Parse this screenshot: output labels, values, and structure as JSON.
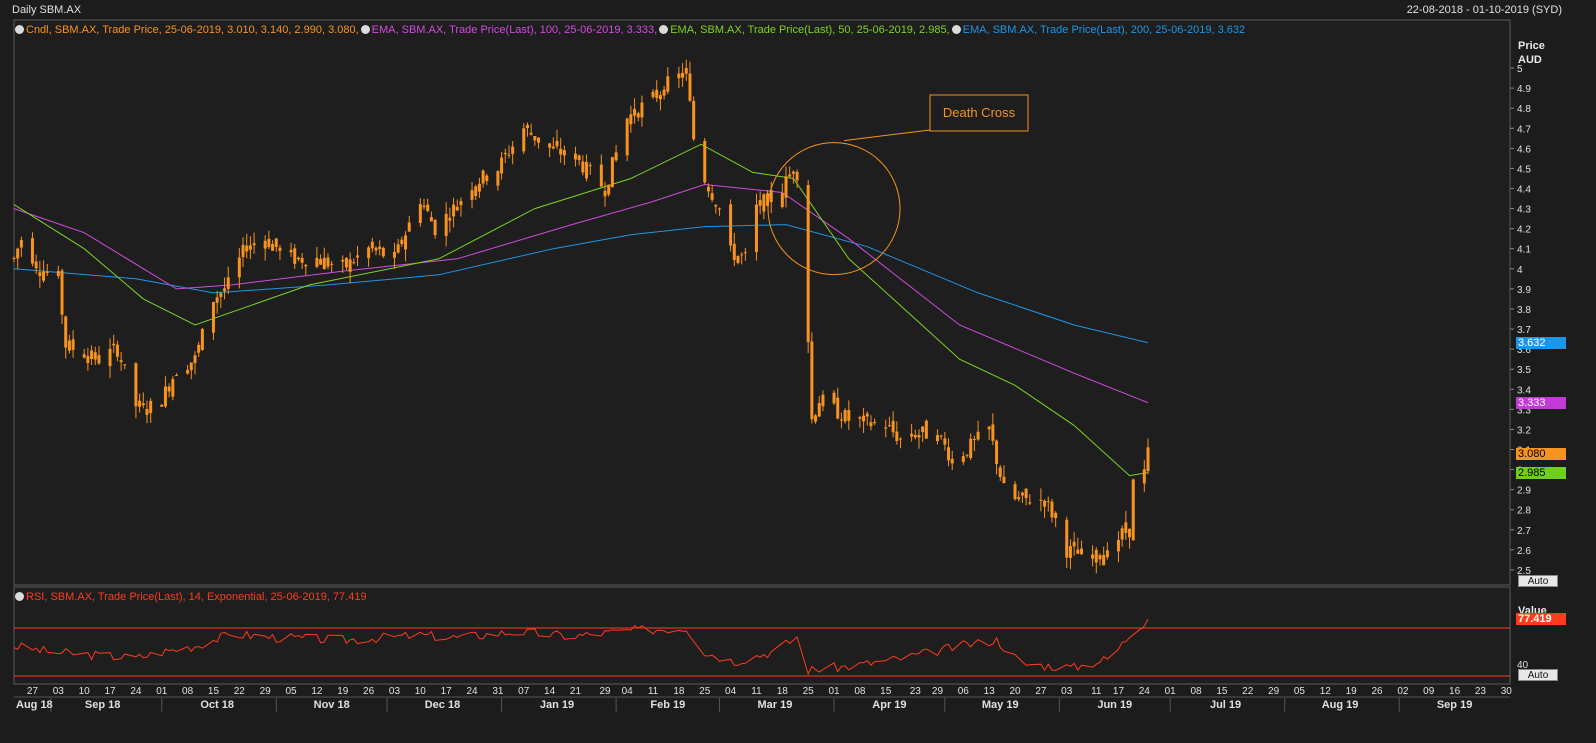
{
  "header": {
    "title": "Daily SBM.AX",
    "date_range": "22-08-2018 - 01-10-2019 (SYD)"
  },
  "legend_main": [
    {
      "label": "Cndl, SBM.AX, Trade Price, 25-06-2019, 3.010, 3.140, 2.990, 3.080,",
      "color": "#f7931e"
    },
    {
      "label": "EMA, SBM.AX, Trade Price(Last),  100, 25-06-2019, 3.333,",
      "color": "#d24be0"
    },
    {
      "label": "EMA, SBM.AX, Trade Price(Last),  50, 25-06-2019, 2.985,",
      "color": "#7ed321"
    },
    {
      "label": "EMA, SBM.AX, Trade Price(Last),  200, 25-06-2019, 3.632",
      "color": "#1e96e8"
    }
  ],
  "legend_rsi": {
    "label": "RSI, SBM.AX, Trade Price(Last),  14, Exponential, 25-06-2019, 77.419",
    "color": "#ff3b1f"
  },
  "price_axis": {
    "title": "Price",
    "unit": "AUD"
  },
  "rsi_axis": {
    "title": "Value",
    "tick": "40"
  },
  "auto_label": "Auto",
  "annotation": {
    "text": "Death Cross",
    "color": "#f7931e"
  },
  "price_tags": [
    {
      "text": "3.632",
      "bg": "#1e96e8",
      "fg": "#ffffff",
      "value": 3.632
    },
    {
      "text": "3.333",
      "bg": "#c23ad6",
      "fg": "#ffffff",
      "value": 3.333
    },
    {
      "text": "3.080",
      "bg": "#f7931e",
      "fg": "#000000",
      "value": 3.08
    },
    {
      "text": "2.985",
      "bg": "#6fcf1c",
      "fg": "#000000",
      "value": 2.985
    }
  ],
  "rsi_tag": {
    "text": "77.419",
    "bg": "#ff3b1f",
    "fg": "#ffffff",
    "value": 77.419
  },
  "chart_data": {
    "type": "line",
    "x_range": [
      "2018-08-22",
      "2019-10-01"
    ],
    "ylim": [
      2.45,
      5.05
    ],
    "y_ticks": [
      "5",
      "4.9",
      "4.8",
      "4.7",
      "4.6",
      "4.5",
      "4.4",
      "4.3",
      "4.2",
      "4.1",
      "4",
      "3.9",
      "3.8",
      "3.7",
      "3.6",
      "3.5",
      "3.4",
      "3.3",
      "3.2",
      "3.1",
      "3",
      "2.9",
      "2.8",
      "2.7",
      "2.6",
      "2.5"
    ],
    "x_day_ticks": [
      {
        "label": "27",
        "date": "2018-08-27"
      },
      {
        "label": "03",
        "date": "2018-09-03"
      },
      {
        "label": "10",
        "date": "2018-09-10"
      },
      {
        "label": "17",
        "date": "2018-09-17"
      },
      {
        "label": "24",
        "date": "2018-09-24"
      },
      {
        "label": "01",
        "date": "2018-10-01"
      },
      {
        "label": "08",
        "date": "2018-10-08"
      },
      {
        "label": "15",
        "date": "2018-10-15"
      },
      {
        "label": "22",
        "date": "2018-10-22"
      },
      {
        "label": "29",
        "date": "2018-10-29"
      },
      {
        "label": "05",
        "date": "2018-11-05"
      },
      {
        "label": "12",
        "date": "2018-11-12"
      },
      {
        "label": "19",
        "date": "2018-11-19"
      },
      {
        "label": "26",
        "date": "2018-11-26"
      },
      {
        "label": "03",
        "date": "2018-12-03"
      },
      {
        "label": "10",
        "date": "2018-12-10"
      },
      {
        "label": "17",
        "date": "2018-12-17"
      },
      {
        "label": "24",
        "date": "2018-12-24"
      },
      {
        "label": "31",
        "date": "2018-12-31"
      },
      {
        "label": "07",
        "date": "2019-01-07"
      },
      {
        "label": "14",
        "date": "2019-01-14"
      },
      {
        "label": "21",
        "date": "2019-01-21"
      },
      {
        "label": "29",
        "date": "2019-01-29"
      },
      {
        "label": "04",
        "date": "2019-02-04"
      },
      {
        "label": "11",
        "date": "2019-02-11"
      },
      {
        "label": "18",
        "date": "2019-02-18"
      },
      {
        "label": "25",
        "date": "2019-02-25"
      },
      {
        "label": "04",
        "date": "2019-03-04"
      },
      {
        "label": "11",
        "date": "2019-03-11"
      },
      {
        "label": "18",
        "date": "2019-03-18"
      },
      {
        "label": "25",
        "date": "2019-03-25"
      },
      {
        "label": "01",
        "date": "2019-04-01"
      },
      {
        "label": "08",
        "date": "2019-04-08"
      },
      {
        "label": "15",
        "date": "2019-04-15"
      },
      {
        "label": "23",
        "date": "2019-04-23"
      },
      {
        "label": "29",
        "date": "2019-04-29"
      },
      {
        "label": "06",
        "date": "2019-05-06"
      },
      {
        "label": "13",
        "date": "2019-05-13"
      },
      {
        "label": "20",
        "date": "2019-05-20"
      },
      {
        "label": "27",
        "date": "2019-05-27"
      },
      {
        "label": "03",
        "date": "2019-06-03"
      },
      {
        "label": "11",
        "date": "2019-06-11"
      },
      {
        "label": "17",
        "date": "2019-06-17"
      },
      {
        "label": "24",
        "date": "2019-06-24"
      },
      {
        "label": "01",
        "date": "2019-07-01"
      },
      {
        "label": "08",
        "date": "2019-07-08"
      },
      {
        "label": "15",
        "date": "2019-07-15"
      },
      {
        "label": "22",
        "date": "2019-07-22"
      },
      {
        "label": "29",
        "date": "2019-07-29"
      },
      {
        "label": "05",
        "date": "2019-08-05"
      },
      {
        "label": "12",
        "date": "2019-08-12"
      },
      {
        "label": "19",
        "date": "2019-08-19"
      },
      {
        "label": "26",
        "date": "2019-08-26"
      },
      {
        "label": "02",
        "date": "2019-09-02"
      },
      {
        "label": "09",
        "date": "2019-09-09"
      },
      {
        "label": "16",
        "date": "2019-09-16"
      },
      {
        "label": "23",
        "date": "2019-09-23"
      },
      {
        "label": "30",
        "date": "2019-09-30"
      }
    ],
    "x_month_ticks": [
      {
        "label": "Aug 18",
        "date": "2018-08-22"
      },
      {
        "label": "Sep 18",
        "date": "2018-09-15"
      },
      {
        "label": "Oct 18",
        "date": "2018-10-16"
      },
      {
        "label": "Nov 18",
        "date": "2018-11-16"
      },
      {
        "label": "Dec 18",
        "date": "2018-12-16"
      },
      {
        "label": "Jan 19",
        "date": "2019-01-16"
      },
      {
        "label": "Feb 19",
        "date": "2019-02-15"
      },
      {
        "label": "Mar 19",
        "date": "2019-03-16"
      },
      {
        "label": "Apr 19",
        "date": "2019-04-16"
      },
      {
        "label": "May 19",
        "date": "2019-05-16"
      },
      {
        "label": "Jun 19",
        "date": "2019-06-16"
      },
      {
        "label": "Jul 19",
        "date": "2019-07-16"
      },
      {
        "label": "Aug 19",
        "date": "2019-08-16"
      },
      {
        "label": "Sep 19",
        "date": "2019-09-16"
      }
    ],
    "month_boundaries": [
      "2018-09-01",
      "2018-10-01",
      "2018-11-01",
      "2018-12-01",
      "2019-01-01",
      "2019-02-01",
      "2019-03-01",
      "2019-04-01",
      "2019-05-01",
      "2019-06-01",
      "2019-07-01",
      "2019-08-01",
      "2019-09-01"
    ],
    "price_path": [
      [
        "2018-08-22",
        4.05
      ],
      [
        "2018-08-24",
        4.15
      ],
      [
        "2018-08-29",
        4.0
      ],
      [
        "2018-09-03",
        3.95
      ],
      [
        "2018-09-05",
        3.62
      ],
      [
        "2018-09-10",
        3.58
      ],
      [
        "2018-09-14",
        3.55
      ],
      [
        "2018-09-19",
        3.6
      ],
      [
        "2018-09-24",
        3.32
      ],
      [
        "2018-09-27",
        3.3
      ],
      [
        "2018-10-01",
        3.35
      ],
      [
        "2018-10-05",
        3.5
      ],
      [
        "2018-10-10",
        3.55
      ],
      [
        "2018-10-15",
        3.85
      ],
      [
        "2018-10-19",
        3.92
      ],
      [
        "2018-10-24",
        4.12
      ],
      [
        "2018-10-29",
        4.15
      ],
      [
        "2018-11-05",
        4.05
      ],
      [
        "2018-11-12",
        4.05
      ],
      [
        "2018-11-19",
        4.0
      ],
      [
        "2018-11-26",
        4.1
      ],
      [
        "2018-12-03",
        4.05
      ],
      [
        "2018-12-10",
        4.35
      ],
      [
        "2018-12-14",
        4.2
      ],
      [
        "2018-12-19",
        4.3
      ],
      [
        "2018-12-24",
        4.42
      ],
      [
        "2018-12-31",
        4.5
      ],
      [
        "2019-01-07",
        4.7
      ],
      [
        "2019-01-14",
        4.6
      ],
      [
        "2019-01-21",
        4.55
      ],
      [
        "2019-01-29",
        4.4
      ],
      [
        "2019-02-04",
        4.75
      ],
      [
        "2019-02-11",
        4.85
      ],
      [
        "2019-02-15",
        4.92
      ],
      [
        "2019-02-20",
        4.98
      ],
      [
        "2019-02-22",
        4.65
      ],
      [
        "2019-02-25",
        4.45
      ],
      [
        "2019-03-01",
        4.3
      ],
      [
        "2019-03-04",
        4.08
      ],
      [
        "2019-03-08",
        4.05
      ],
      [
        "2019-03-11",
        4.3
      ],
      [
        "2019-03-15",
        4.35
      ],
      [
        "2019-03-18",
        4.4
      ],
      [
        "2019-03-21",
        4.5
      ],
      [
        "2019-03-22",
        4.48
      ],
      [
        "2019-03-25",
        3.65
      ],
      [
        "2019-03-26",
        3.25
      ],
      [
        "2019-03-28",
        3.35
      ],
      [
        "2019-04-01",
        3.3
      ],
      [
        "2019-04-05",
        3.25
      ],
      [
        "2019-04-10",
        3.23
      ],
      [
        "2019-04-15",
        3.22
      ],
      [
        "2019-04-19",
        3.15
      ],
      [
        "2019-04-23",
        3.18
      ],
      [
        "2019-04-29",
        3.18
      ],
      [
        "2019-05-03",
        3.05
      ],
      [
        "2019-05-07",
        3.1
      ],
      [
        "2019-05-10",
        3.15
      ],
      [
        "2019-05-13",
        3.2
      ],
      [
        "2019-05-17",
        2.9
      ],
      [
        "2019-05-20",
        2.85
      ],
      [
        "2019-05-24",
        2.85
      ],
      [
        "2019-05-28",
        2.85
      ],
      [
        "2019-05-31",
        2.75
      ],
      [
        "2019-06-03",
        2.6
      ],
      [
        "2019-06-06",
        2.58
      ],
      [
        "2019-06-10",
        2.55
      ],
      [
        "2019-06-14",
        2.6
      ],
      [
        "2019-06-18",
        2.68
      ],
      [
        "2019-06-20",
        2.7
      ],
      [
        "2019-06-21",
        2.93
      ],
      [
        "2019-06-24",
        2.98
      ],
      [
        "2019-06-25",
        3.08
      ]
    ],
    "series": [
      {
        "name": "EMA 200",
        "color": "#1e96e8",
        "points": [
          [
            "2018-08-22",
            4.0
          ],
          [
            "2018-09-24",
            3.95
          ],
          [
            "2018-10-15",
            3.88
          ],
          [
            "2018-11-15",
            3.92
          ],
          [
            "2018-12-15",
            3.97
          ],
          [
            "2019-01-15",
            4.1
          ],
          [
            "2019-02-05",
            4.17
          ],
          [
            "2019-02-25",
            4.21
          ],
          [
            "2019-03-19",
            4.22
          ],
          [
            "2019-04-10",
            4.11
          ],
          [
            "2019-05-10",
            3.88
          ],
          [
            "2019-06-05",
            3.72
          ],
          [
            "2019-06-25",
            3.632
          ]
        ]
      },
      {
        "name": "EMA 100",
        "color": "#d24be0",
        "points": [
          [
            "2018-08-22",
            4.3
          ],
          [
            "2018-09-10",
            4.18
          ],
          [
            "2018-10-05",
            3.9
          ],
          [
            "2018-10-20",
            3.92
          ],
          [
            "2018-11-20",
            3.99
          ],
          [
            "2018-12-20",
            4.05
          ],
          [
            "2019-01-20",
            4.22
          ],
          [
            "2019-02-10",
            4.33
          ],
          [
            "2019-02-25",
            4.42
          ],
          [
            "2019-03-18",
            4.38
          ],
          [
            "2019-04-05",
            4.15
          ],
          [
            "2019-05-05",
            3.72
          ],
          [
            "2019-06-05",
            3.48
          ],
          [
            "2019-06-25",
            3.333
          ]
        ]
      },
      {
        "name": "EMA 50",
        "color": "#7ed321",
        "points": [
          [
            "2018-08-22",
            4.32
          ],
          [
            "2018-09-10",
            4.1
          ],
          [
            "2018-09-26",
            3.85
          ],
          [
            "2018-10-10",
            3.72
          ],
          [
            "2018-11-10",
            3.92
          ],
          [
            "2018-12-15",
            4.05
          ],
          [
            "2019-01-10",
            4.3
          ],
          [
            "2019-02-05",
            4.45
          ],
          [
            "2019-02-24",
            4.62
          ],
          [
            "2019-03-10",
            4.48
          ],
          [
            "2019-03-21",
            4.45
          ],
          [
            "2019-04-05",
            4.05
          ],
          [
            "2019-05-05",
            3.55
          ],
          [
            "2019-05-20",
            3.42
          ],
          [
            "2019-06-05",
            3.22
          ],
          [
            "2019-06-20",
            2.97
          ],
          [
            "2019-06-25",
            2.985
          ]
        ]
      }
    ],
    "rsi": {
      "ylim": [
        25,
        90
      ],
      "levels": [
        70,
        30
      ],
      "points": [
        [
          "2018-08-22",
          55
        ],
        [
          "2018-09-01",
          50
        ],
        [
          "2018-09-10",
          48
        ],
        [
          "2018-09-24",
          45
        ],
        [
          "2018-10-01",
          50
        ],
        [
          "2018-10-10",
          55
        ],
        [
          "2018-10-20",
          65
        ],
        [
          "2018-11-01",
          62
        ],
        [
          "2018-11-20",
          60
        ],
        [
          "2018-12-10",
          64
        ],
        [
          "2018-12-20",
          62
        ],
        [
          "2019-01-05",
          67
        ],
        [
          "2019-01-20",
          63
        ],
        [
          "2019-02-05",
          68
        ],
        [
          "2019-02-20",
          70
        ],
        [
          "2019-02-25",
          50
        ],
        [
          "2019-03-05",
          42
        ],
        [
          "2019-03-15",
          50
        ],
        [
          "2019-03-22",
          62
        ],
        [
          "2019-03-25",
          35
        ],
        [
          "2019-04-05",
          38
        ],
        [
          "2019-04-20",
          45
        ],
        [
          "2019-05-05",
          55
        ],
        [
          "2019-05-15",
          60
        ],
        [
          "2019-05-22",
          40
        ],
        [
          "2019-06-05",
          37
        ],
        [
          "2019-06-15",
          45
        ],
        [
          "2019-06-21",
          68
        ],
        [
          "2019-06-25",
          77.419
        ]
      ]
    }
  }
}
